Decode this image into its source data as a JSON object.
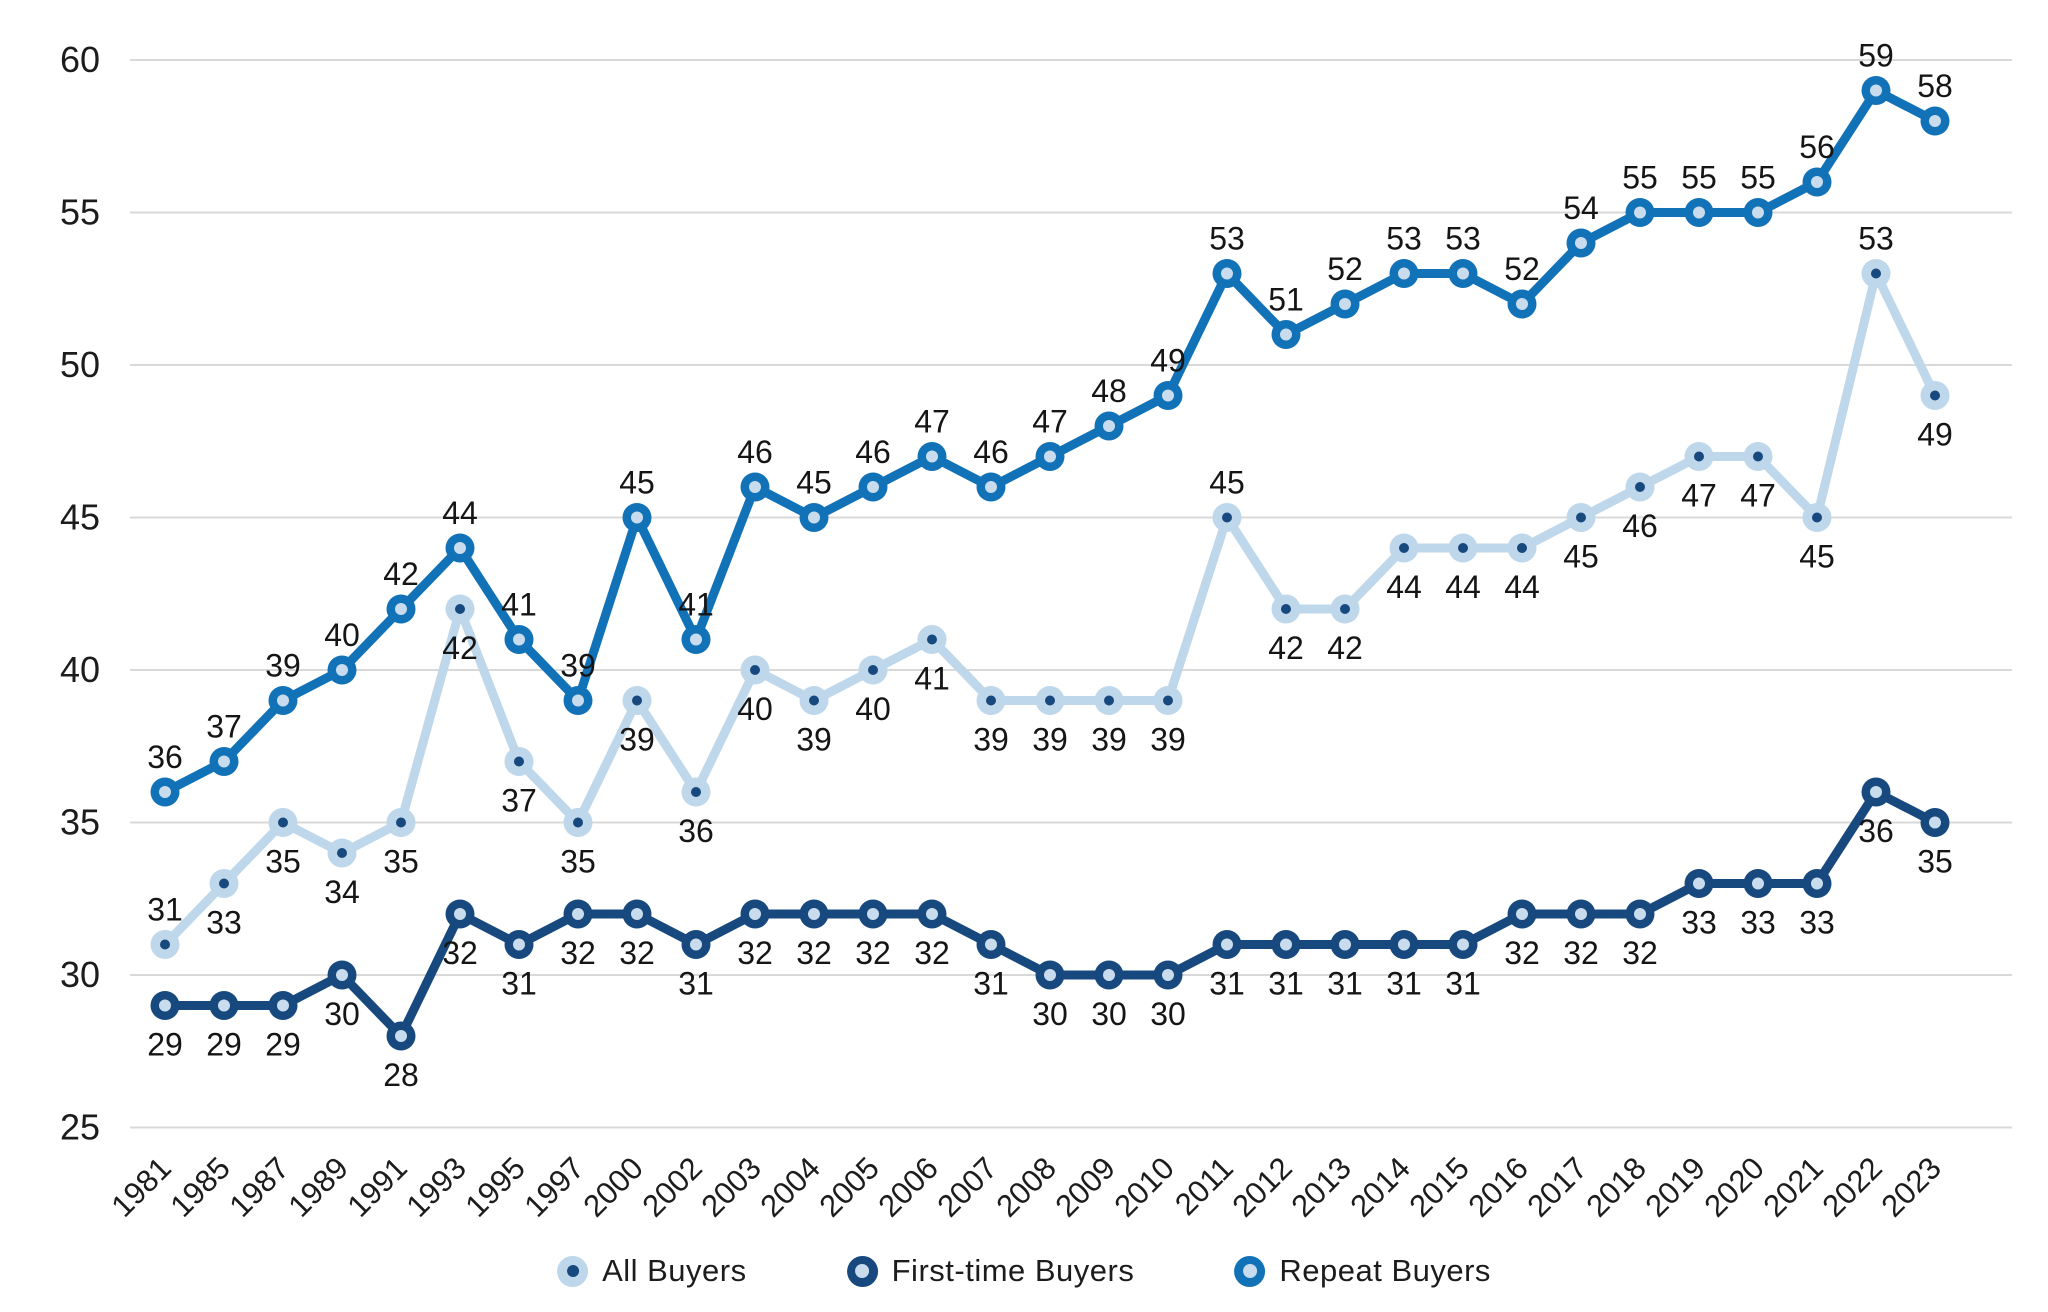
{
  "chart_data": {
    "type": "line",
    "title": "",
    "xlabel": "",
    "ylabel": "",
    "categories": [
      "1981",
      "1985",
      "1987",
      "1989",
      "1991",
      "1993",
      "1995",
      "1997",
      "2000",
      "2002",
      "2003",
      "2004",
      "2005",
      "2006",
      "2007",
      "2008",
      "2009",
      "2010",
      "2011",
      "2012",
      "2013",
      "2014",
      "2015",
      "2016",
      "2017",
      "2018",
      "2019",
      "2020",
      "2021",
      "2022",
      "2023"
    ],
    "series": [
      {
        "name": "All Buyers",
        "line_color": "#bed7eb",
        "marker_fill": "#bed7eb",
        "marker_center": "#17497f",
        "marker_center_r": 5,
        "values": [
          31,
          33,
          35,
          34,
          35,
          42,
          37,
          35,
          39,
          36,
          40,
          39,
          40,
          41,
          39,
          39,
          39,
          39,
          45,
          42,
          42,
          44,
          44,
          44,
          45,
          46,
          47,
          47,
          45,
          53,
          49
        ],
        "label_sides": [
          "above",
          "below",
          "below",
          "below",
          "below",
          "below",
          "below",
          "below",
          "below",
          "below",
          "below",
          "below",
          "below",
          "below",
          "below",
          "below",
          "below",
          "below",
          "above",
          "below",
          "below",
          "below",
          "below",
          "below",
          "below",
          "below",
          "below",
          "below",
          "below",
          "above",
          "below"
        ]
      },
      {
        "name": "First-time Buyers",
        "line_color": "#17497f",
        "marker_fill": "#17497f",
        "marker_center": "#c8dcee",
        "marker_center_r": 6,
        "values": [
          29,
          29,
          29,
          30,
          28,
          32,
          31,
          32,
          32,
          31,
          32,
          32,
          32,
          32,
          31,
          30,
          30,
          30,
          31,
          31,
          31,
          31,
          31,
          32,
          32,
          32,
          33,
          33,
          33,
          36,
          35
        ],
        "label_sides": "below"
      },
      {
        "name": "Repeat Buyers",
        "line_color": "#1272b8",
        "marker_fill": "#1272b8",
        "marker_center": "#c8dcee",
        "marker_center_r": 6,
        "values": [
          36,
          37,
          39,
          40,
          42,
          44,
          41,
          39,
          45,
          41,
          46,
          45,
          46,
          47,
          46,
          47,
          48,
          49,
          53,
          51,
          52,
          53,
          53,
          52,
          54,
          55,
          55,
          55,
          56,
          59,
          58
        ],
        "label_sides": "above"
      }
    ],
    "ylim": [
      25,
      60
    ],
    "yticks": [
      25,
      30,
      35,
      40,
      45,
      50,
      55,
      60
    ],
    "grid": true,
    "legend_position": "bottom"
  },
  "colors": {
    "grid": "#d9d9d9",
    "axis_text": "#1c1c1c",
    "label_text": "#151515",
    "background": "#ffffff"
  }
}
